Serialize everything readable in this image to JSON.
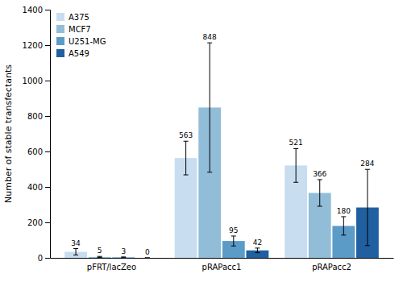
{
  "chart_data": {
    "type": "bar",
    "categories": [
      "pFRT/lacZeo",
      "pRAPacc1",
      "pRAPacc2"
    ],
    "series": [
      {
        "name": "A375",
        "color": "#c8ddf0",
        "values": [
          34,
          563,
          521
        ],
        "errors": [
          18,
          95,
          95
        ]
      },
      {
        "name": "MCF7",
        "color": "#91bdd8",
        "values": [
          5,
          848,
          366
        ],
        "errors": [
          3,
          365,
          75
        ]
      },
      {
        "name": "U251-MG",
        "color": "#5b9bc8",
        "values": [
          3,
          95,
          180
        ],
        "errors": [
          2,
          28,
          52
        ]
      },
      {
        "name": "A549",
        "color": "#2060a0",
        "values": [
          0,
          42,
          284
        ],
        "errors": [
          0,
          13,
          215
        ]
      }
    ],
    "ylabel": "Number of stable transfectants",
    "ylim": [
      0,
      1400
    ],
    "yticks": [
      0,
      200,
      400,
      600,
      800,
      1000,
      1200,
      1400
    ],
    "legend": "upper left",
    "data_labels": true
  }
}
